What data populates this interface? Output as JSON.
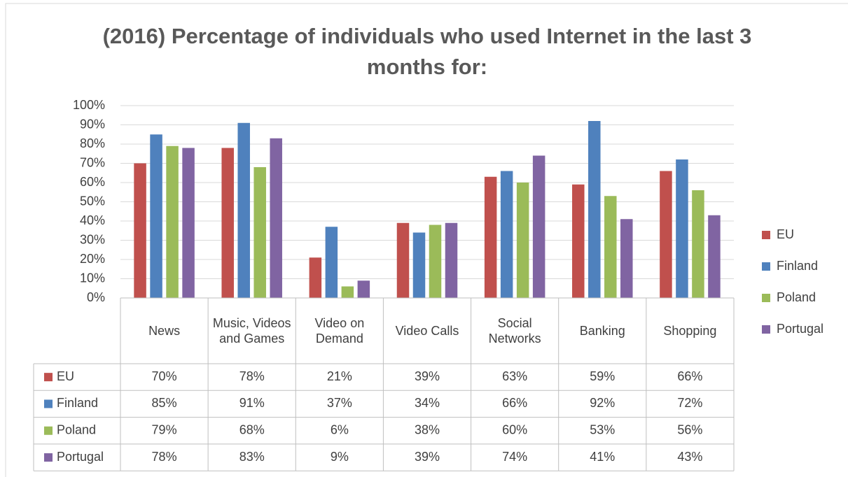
{
  "chart_data": {
    "type": "bar",
    "title": "(2016) Percentage of individuals who used Internet in the last 3 months for:",
    "categories": [
      "News",
      "Music, Videos and Games",
      "Video on Demand",
      "Video Calls",
      "Social Networks",
      "Banking",
      "Shopping"
    ],
    "series": [
      {
        "name": "EU",
        "color": "#c0504d",
        "values": [
          70,
          78,
          21,
          39,
          63,
          59,
          66
        ],
        "value_labels": [
          "70%",
          "78%",
          "21%",
          "39%",
          "63%",
          "59%",
          "66%"
        ]
      },
      {
        "name": "Finland",
        "color": "#4f81bd",
        "values": [
          85,
          91,
          37,
          34,
          66,
          92,
          72
        ],
        "value_labels": [
          "85%",
          "91%",
          "37%",
          "34%",
          "66%",
          "92%",
          "72%"
        ]
      },
      {
        "name": "Poland",
        "color": "#9bbb59",
        "values": [
          79,
          68,
          6,
          38,
          60,
          53,
          56
        ],
        "value_labels": [
          "79%",
          "68%",
          "6%",
          "38%",
          "60%",
          "53%",
          "56%"
        ]
      },
      {
        "name": "Portugal",
        "color": "#8064a2",
        "values": [
          78,
          83,
          9,
          39,
          74,
          41,
          43
        ],
        "value_labels": [
          "78%",
          "83%",
          "9%",
          "39%",
          "74%",
          "41%",
          "43%"
        ]
      }
    ],
    "ylim": [
      0,
      100
    ],
    "yticks": [
      {
        "value": 0,
        "label": "0%"
      },
      {
        "value": 10,
        "label": "10%"
      },
      {
        "value": 20,
        "label": "20%"
      },
      {
        "value": 30,
        "label": "30%"
      },
      {
        "value": 40,
        "label": "40%"
      },
      {
        "value": 50,
        "label": "50%"
      },
      {
        "value": 60,
        "label": "60%"
      },
      {
        "value": 70,
        "label": "70%"
      },
      {
        "value": 80,
        "label": "80%"
      },
      {
        "value": 90,
        "label": "90%"
      },
      {
        "value": 100,
        "label": "100%"
      }
    ],
    "grid": true,
    "legend": "right",
    "data_table": true
  }
}
